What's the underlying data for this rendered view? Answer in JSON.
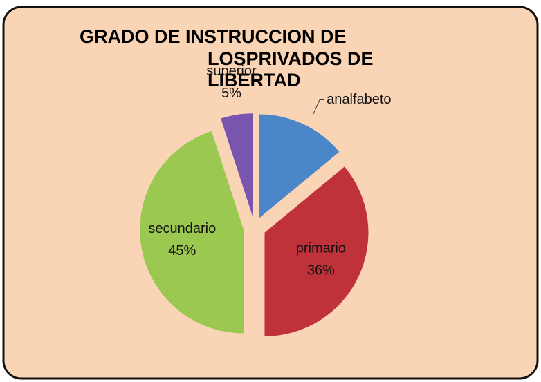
{
  "chart_data": {
    "type": "pie",
    "title": [
      "GRADO DE INSTRUCCION DE",
      "LOSPRIVADOS DE",
      "LIBERTAD"
    ],
    "categories": [
      "analfabeto",
      "primario",
      "secundario",
      "superior"
    ],
    "values": [
      14,
      36,
      45,
      5
    ],
    "value_labels": [
      null,
      "36%",
      "45%",
      "5%"
    ],
    "colors": [
      "#4a86c8",
      "#c0323a",
      "#9bc850",
      "#7a55b0"
    ]
  }
}
